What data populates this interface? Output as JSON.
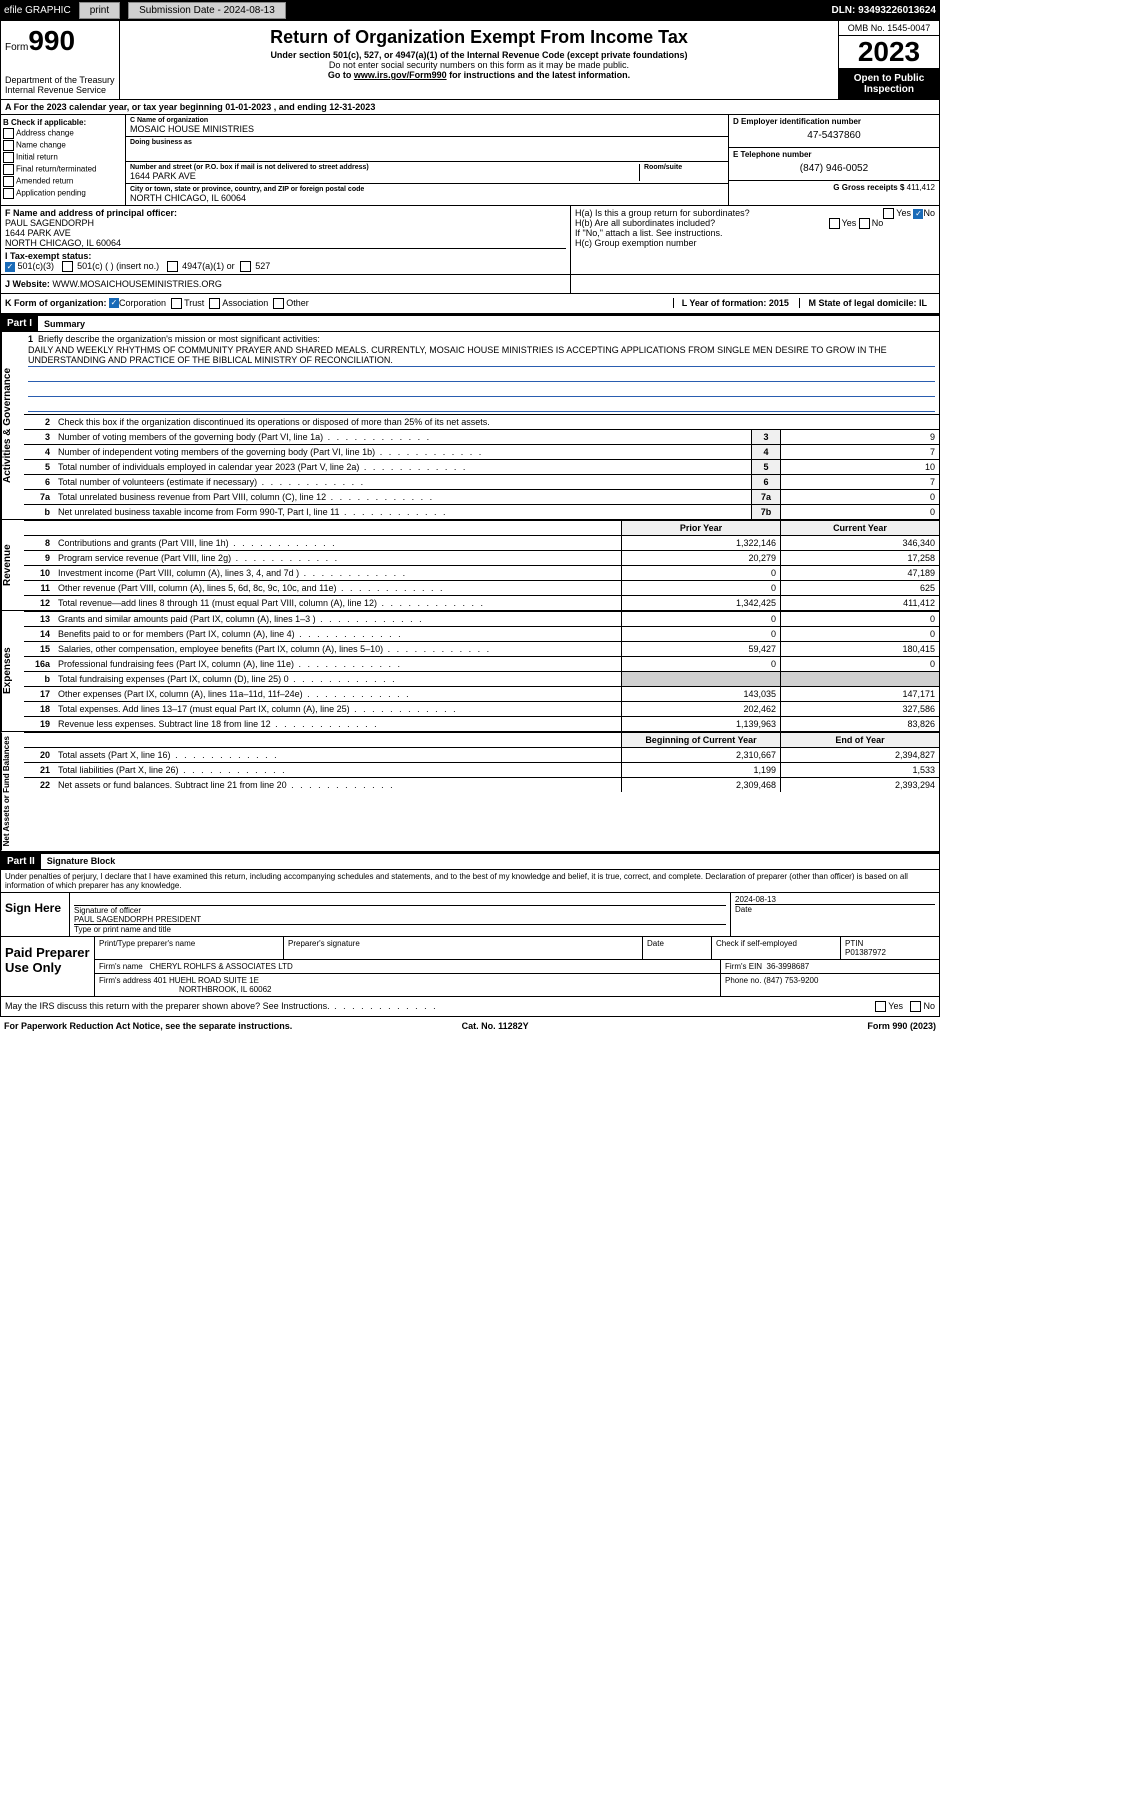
{
  "topbar": {
    "efile": "efile GRAPHIC",
    "print": "print",
    "submission_label": "Submission Date - 2024-08-13",
    "dln": "DLN: 93493226013624"
  },
  "header": {
    "form_word": "Form",
    "form_no": "990",
    "dept": "Department of the Treasury",
    "irs": "Internal Revenue Service",
    "title": "Return of Organization Exempt From Income Tax",
    "subtitle": "Under section 501(c), 527, or 4947(a)(1) of the Internal Revenue Code (except private foundations)",
    "warn": "Do not enter social security numbers on this form as it may be made public.",
    "goto": "Go to ",
    "link": "www.irs.gov/Form990",
    "goto2": " for instructions and the latest information.",
    "omb": "OMB No. 1545-0047",
    "year": "2023",
    "inspection": "Open to Public Inspection"
  },
  "rowA": "A For the 2023 calendar year, or tax year beginning 01-01-2023   , and ending 12-31-2023",
  "sectionB": {
    "title": "B Check if applicable:",
    "opts": [
      "Address change",
      "Name change",
      "Initial return",
      "Final return/terminated",
      "Amended return",
      "Application pending"
    ],
    "c_name_label": "C Name of organization",
    "c_name": "MOSAIC HOUSE MINISTRIES",
    "dba_label": "Doing business as",
    "street_label": "Number and street (or P.O. box if mail is not delivered to street address)",
    "street": "1644 PARK AVE",
    "room_label": "Room/suite",
    "city_label": "City or town, state or province, country, and ZIP or foreign postal code",
    "city": "NORTH CHICAGO, IL  60064",
    "d_label": "D Employer identification number",
    "d_val": "47-5437860",
    "e_label": "E Telephone number",
    "e_val": "(847) 946-0052",
    "g_label": "G Gross receipts $",
    "g_val": "411,412"
  },
  "sectionFH": {
    "f_label": "F Name and address of principal officer:",
    "f_name": "PAUL SAGENDORPH",
    "f_addr1": "1644 PARK AVE",
    "f_addr2": "NORTH CHICAGO, IL  60064",
    "i_label": "I   Tax-exempt status:",
    "i_501c3": "501(c)(3)",
    "i_501c": "501(c) (  ) (insert no.)",
    "i_4947": "4947(a)(1) or",
    "i_527": "527",
    "ha": "H(a)  Is this a group return for subordinates?",
    "ha_yes": "Yes",
    "ha_no": "No",
    "hb": "H(b)  Are all subordinates included?",
    "hb_note": "If \"No,\" attach a list. See instructions.",
    "hc": "H(c)  Group exemption number"
  },
  "j": {
    "label": "J   Website:",
    "val": "WWW.MOSAICHOUSEMINISTRIES.ORG"
  },
  "k": {
    "label": "K Form of organization:",
    "corp": "Corporation",
    "trust": "Trust",
    "assoc": "Association",
    "other": "Other",
    "l_label": "L Year of formation: 2015",
    "m_label": "M State of legal domicile: IL"
  },
  "part1": {
    "hdr": "Part I",
    "title": "Summary",
    "gov_label": "Activities & Governance",
    "rev_label": "Revenue",
    "exp_label": "Expenses",
    "net_label": "Net Assets or Fund Balances",
    "q1": "Briefly describe the organization's mission or most significant activities:",
    "mission": "DAILY AND WEEKLY RHYTHMS OF COMMUNITY PRAYER AND SHARED MEALS. CURRENTLY, MOSAIC HOUSE MINISTRIES IS ACCEPTING APPLICATIONS FROM SINGLE MEN DESIRE TO GROW IN THE UNDERSTANDING AND PRACTICE OF THE BIBLICAL MINISTRY OF RECONCILIATION.",
    "q2": "Check this box       if the organization discontinued its operations or disposed of more than 25% of its net assets.",
    "rows_gov": [
      {
        "n": "3",
        "d": "Number of voting members of the governing body (Part VI, line 1a)",
        "box": "3",
        "v": "9"
      },
      {
        "n": "4",
        "d": "Number of independent voting members of the governing body (Part VI, line 1b)",
        "box": "4",
        "v": "7"
      },
      {
        "n": "5",
        "d": "Total number of individuals employed in calendar year 2023 (Part V, line 2a)",
        "box": "5",
        "v": "10"
      },
      {
        "n": "6",
        "d": "Total number of volunteers (estimate if necessary)",
        "box": "6",
        "v": "7"
      },
      {
        "n": "7a",
        "d": "Total unrelated business revenue from Part VIII, column (C), line 12",
        "box": "7a",
        "v": "0"
      },
      {
        "n": "b",
        "d": "Net unrelated business taxable income from Form 990-T, Part I, line 11",
        "box": "7b",
        "v": "0"
      }
    ],
    "hdr_prior": "Prior Year",
    "hdr_current": "Current Year",
    "rows_rev": [
      {
        "n": "8",
        "d": "Contributions and grants (Part VIII, line 1h)",
        "p": "1,322,146",
        "c": "346,340"
      },
      {
        "n": "9",
        "d": "Program service revenue (Part VIII, line 2g)",
        "p": "20,279",
        "c": "17,258"
      },
      {
        "n": "10",
        "d": "Investment income (Part VIII, column (A), lines 3, 4, and 7d )",
        "p": "0",
        "c": "47,189"
      },
      {
        "n": "11",
        "d": "Other revenue (Part VIII, column (A), lines 5, 6d, 8c, 9c, 10c, and 11e)",
        "p": "0",
        "c": "625"
      },
      {
        "n": "12",
        "d": "Total revenue—add lines 8 through 11 (must equal Part VIII, column (A), line 12)",
        "p": "1,342,425",
        "c": "411,412"
      }
    ],
    "rows_exp": [
      {
        "n": "13",
        "d": "Grants and similar amounts paid (Part IX, column (A), lines 1–3 )",
        "p": "0",
        "c": "0"
      },
      {
        "n": "14",
        "d": "Benefits paid to or for members (Part IX, column (A), line 4)",
        "p": "0",
        "c": "0"
      },
      {
        "n": "15",
        "d": "Salaries, other compensation, employee benefits (Part IX, column (A), lines 5–10)",
        "p": "59,427",
        "c": "180,415"
      },
      {
        "n": "16a",
        "d": "Professional fundraising fees (Part IX, column (A), line 11e)",
        "p": "0",
        "c": "0"
      },
      {
        "n": "b",
        "d": "Total fundraising expenses (Part IX, column (D), line 25) 0",
        "p": "",
        "c": "",
        "shade": true
      },
      {
        "n": "17",
        "d": "Other expenses (Part IX, column (A), lines 11a–11d, 11f–24e)",
        "p": "143,035",
        "c": "147,171"
      },
      {
        "n": "18",
        "d": "Total expenses. Add lines 13–17 (must equal Part IX, column (A), line 25)",
        "p": "202,462",
        "c": "327,586"
      },
      {
        "n": "19",
        "d": "Revenue less expenses. Subtract line 18 from line 12",
        "p": "1,139,963",
        "c": "83,826"
      }
    ],
    "hdr_begin": "Beginning of Current Year",
    "hdr_end": "End of Year",
    "rows_net": [
      {
        "n": "20",
        "d": "Total assets (Part X, line 16)",
        "p": "2,310,667",
        "c": "2,394,827"
      },
      {
        "n": "21",
        "d": "Total liabilities (Part X, line 26)",
        "p": "1,199",
        "c": "1,533"
      },
      {
        "n": "22",
        "d": "Net assets or fund balances. Subtract line 21 from line 20",
        "p": "2,309,468",
        "c": "2,393,294"
      }
    ]
  },
  "part2": {
    "hdr": "Part II",
    "title": "Signature Block",
    "perjury": "Under penalties of perjury, I declare that I have examined this return, including accompanying schedules and statements, and to the best of my knowledge and belief, it is true, correct, and complete. Declaration of preparer (other than officer) is based on all information of which preparer has any knowledge.",
    "sign_here": "Sign Here",
    "sig_officer": "Signature of officer",
    "officer": "PAUL SAGENDORPH PRESIDENT",
    "type_name": "Type or print name and title",
    "date_label": "Date",
    "date": "2024-08-13",
    "paid_prep": "Paid Preparer Use Only",
    "prep_name_label": "Print/Type preparer's name",
    "prep_sig_label": "Preparer's signature",
    "check_self": "Check       if self-employed",
    "ptin_label": "PTIN",
    "ptin": "P01387972",
    "firm_name_label": "Firm's name",
    "firm_name": "CHERYL ROHLFS & ASSOCIATES LTD",
    "firm_ein_label": "Firm's EIN",
    "firm_ein": "36-3998687",
    "firm_addr_label": "Firm's address",
    "firm_addr": "401 HUEHL ROAD SUITE 1E",
    "firm_city": "NORTHBROOK, IL  60062",
    "phone_label": "Phone no.",
    "phone": "(847) 753-9200",
    "discuss": "May the IRS discuss this return with the preparer shown above? See Instructions.",
    "yes": "Yes",
    "no": "No"
  },
  "foot": {
    "left": "For Paperwork Reduction Act Notice, see the separate instructions.",
    "mid": "Cat. No. 11282Y",
    "right": "Form 990 (2023)"
  }
}
